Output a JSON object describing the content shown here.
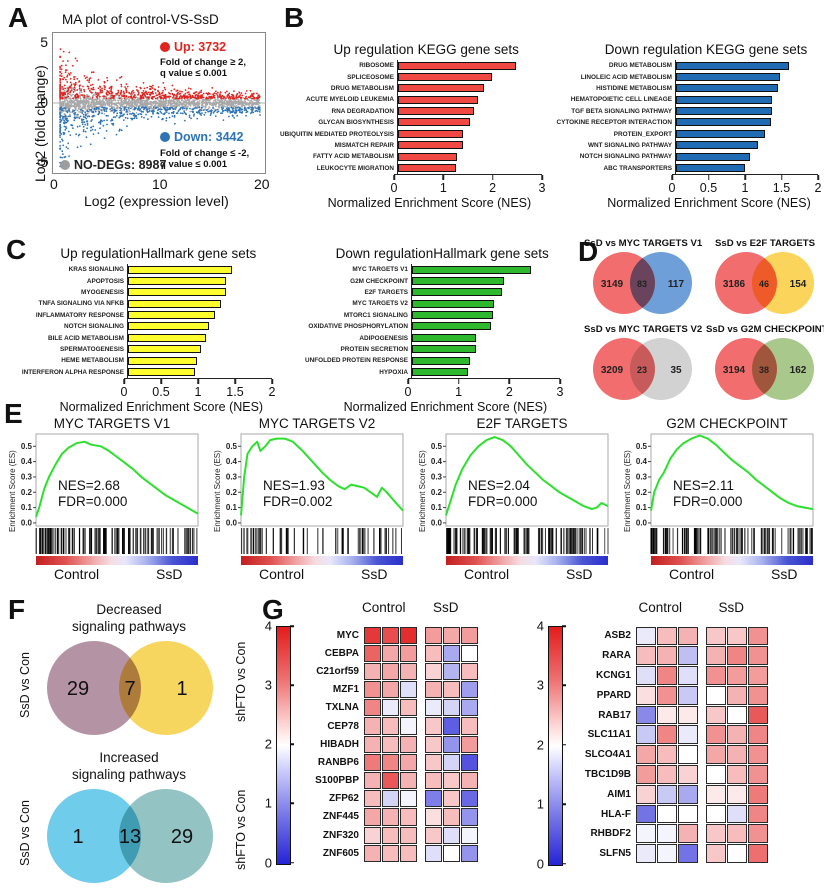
{
  "figure": {
    "labels": {
      "A": "A",
      "B": "B",
      "C": "C",
      "D": "D",
      "E": "E",
      "F": "F",
      "G": "G"
    }
  },
  "chart_data": [
    {
      "id": "ma_plot",
      "type": "scatter",
      "title": "MA plot of control-VS-SsD",
      "xlabel": "Log2 (expression level)",
      "ylabel": "Log2 (fold change)",
      "xlim": [
        0,
        20
      ],
      "ylim": [
        -5.6,
        5.6
      ],
      "xticks": [
        0,
        10,
        20
      ],
      "yticks": [
        5,
        0,
        -5
      ],
      "series": [
        {
          "name": "Up",
          "count": 3732,
          "color": "#e02420",
          "criteria": "Fold of change ≥ 2, q value ≤ 0.001"
        },
        {
          "name": "Down",
          "count": 3442,
          "color": "#2e74b5",
          "criteria": "Fold of change ≤ -2, q value ≤ 0.001"
        },
        {
          "name": "NO-DEGs",
          "count": 8987,
          "color": "#9d9d9d"
        }
      ],
      "legend": {
        "up": "Up: 3732",
        "up_note1": "Fold of change ≥ 2,",
        "up_note2": "q value ≤ 0.001",
        "down": "Down: 3442",
        "down_note1": "Fold of change ≤ -2,",
        "down_note2": "q value ≤ 0.001",
        "nodegs": "NO-DEGs: 8987"
      }
    },
    {
      "id": "kegg_up",
      "type": "bar",
      "title": "Up regulation KEGG gene sets",
      "bar_color": "#f04943",
      "categories": [
        "RIBOSOME",
        "SPLICEOSOME",
        "DRUG METABOLISM",
        "ACUTE MYELOID LEUKEMIA",
        "RNA DEGRADATION",
        "GLYCAN BIOSYNTHESIS",
        "UBIQUITIN MEDIATED PROTEOLYSIS",
        "MISMATCH REPAIR",
        "FATTY ACID METABOLISM",
        "LEUKOCYTE  MIGRATION"
      ],
      "values": [
        2.4,
        1.9,
        1.75,
        1.62,
        1.55,
        1.45,
        1.32,
        1.32,
        1.2,
        1.18
      ],
      "xticks": [
        0,
        1,
        2,
        3
      ],
      "xlim": [
        0,
        3
      ],
      "xlabel": "Normalized Enrichment Score (NES)"
    },
    {
      "id": "kegg_down",
      "type": "bar",
      "title": "Down regulation KEGG gene sets",
      "bar_color": "#1f6cb4",
      "categories": [
        "DRUG METABOLISM",
        "LINOLEIC ACID METABOLISM",
        "HISTIDINE METABOLISM",
        "HEMATOPOIETIC CELL LINEAGE",
        "TGF BETA SIGNALING PATHWAY",
        "CYTOKINE RECEPTOR INTERACTION",
        "PROTEIN_EXPORT",
        "WNT SIGNALING PATHWAY",
        "NOTCH SIGNALING PATHWAY",
        "ABC TRANSPORTERS"
      ],
      "values": [
        1.55,
        1.42,
        1.4,
        1.32,
        1.32,
        1.3,
        1.22,
        1.12,
        1.02,
        0.95
      ],
      "xticks": [
        0,
        0.5,
        1,
        1.5,
        2
      ],
      "xlim": [
        0,
        2
      ],
      "xlabel": "Normalized Enrichment Score (NES)"
    },
    {
      "id": "hallmark_up",
      "type": "bar",
      "title": "Up regulationHallmark gene sets",
      "bar_color": "#ffff2e",
      "categories": [
        "KRAS SIGNALING",
        "APOPTOSIS",
        "MYOGENESIS",
        "TNFA SIGNALING VIA NFKB",
        "INFLAMMATORY RESPONSE",
        "NOTCH SIGNALING",
        "BILE ACID METABOLISM",
        "SPERMATOGENESIS",
        "HEME METABOLISM",
        "INTERFERON ALPHA RESPONSE"
      ],
      "values": [
        1.4,
        1.33,
        1.33,
        1.26,
        1.18,
        1.1,
        1.05,
        0.98,
        0.93,
        0.9
      ],
      "xticks": [
        0,
        0.5,
        1,
        1.5,
        2
      ],
      "xlim": [
        0,
        2
      ],
      "xlabel": "Normalized Enrichment Score (NES)"
    },
    {
      "id": "hallmark_down",
      "type": "bar",
      "title": "Down regulationHallmark gene sets",
      "bar_color": "#2eb82e",
      "categories": [
        "MYC TARGETS V1",
        "G2M CHECKPOINT",
        "E2F TARGETS",
        "MYC TARGETS V2",
        "MTORC1 SIGNALING",
        "OXIDATIVE PHOSPHORYLATION",
        "ADIPOGENESIS",
        "PROTEIN SECRETION",
        "UNFOLDED PROTEIN RESPONSE",
        "HYPOXIA"
      ],
      "values": [
        2.35,
        1.82,
        1.78,
        1.62,
        1.6,
        1.56,
        1.27,
        1.26,
        1.15,
        1.1
      ],
      "xticks": [
        0,
        1,
        2,
        3
      ],
      "xlim": [
        0,
        3
      ],
      "xlabel": "Normalized Enrichment Score (NES)"
    },
    {
      "id": "gsea",
      "type": "line",
      "ylabel": "Enrichment Score (ES)",
      "yticks": [
        0.5,
        0.4,
        0.3,
        0.2,
        0.1,
        0.0
      ],
      "group_left": "Control",
      "group_right": "SsD",
      "curve_color": "#2ee02e",
      "plots": [
        {
          "title": "MYC TARGETS V1",
          "nes": "NES=2.68",
          "fdr": "FDR=0.000",
          "hits": 90,
          "curve": [
            [
              0,
              0.04
            ],
            [
              0.02,
              0.1
            ],
            [
              0.05,
              0.22
            ],
            [
              0.08,
              0.3
            ],
            [
              0.12,
              0.38
            ],
            [
              0.16,
              0.45
            ],
            [
              0.2,
              0.49
            ],
            [
              0.25,
              0.52
            ],
            [
              0.3,
              0.53
            ],
            [
              0.34,
              0.51
            ],
            [
              0.4,
              0.5
            ],
            [
              0.45,
              0.47
            ],
            [
              0.5,
              0.43
            ],
            [
              0.55,
              0.39
            ],
            [
              0.6,
              0.35
            ],
            [
              0.65,
              0.3
            ],
            [
              0.7,
              0.26
            ],
            [
              0.75,
              0.22
            ],
            [
              0.8,
              0.18
            ],
            [
              0.85,
              0.15
            ],
            [
              0.9,
              0.12
            ],
            [
              0.95,
              0.09
            ],
            [
              1,
              0.06
            ]
          ]
        },
        {
          "title": "MYC TARGETS V2",
          "nes": "NES=1.93",
          "fdr": "FDR=0.002",
          "hits": 45,
          "curve": [
            [
              0,
              0.05
            ],
            [
              0.02,
              0.3
            ],
            [
              0.04,
              0.45
            ],
            [
              0.07,
              0.5
            ],
            [
              0.1,
              0.53
            ],
            [
              0.12,
              0.47
            ],
            [
              0.15,
              0.5
            ],
            [
              0.18,
              0.54
            ],
            [
              0.22,
              0.55
            ],
            [
              0.27,
              0.55
            ],
            [
              0.32,
              0.53
            ],
            [
              0.38,
              0.47
            ],
            [
              0.44,
              0.4
            ],
            [
              0.5,
              0.33
            ],
            [
              0.55,
              0.28
            ],
            [
              0.6,
              0.24
            ],
            [
              0.64,
              0.22
            ],
            [
              0.68,
              0.25
            ],
            [
              0.72,
              0.24
            ],
            [
              0.76,
              0.23
            ],
            [
              0.8,
              0.2
            ],
            [
              0.84,
              0.17
            ],
            [
              0.87,
              0.23
            ],
            [
              0.9,
              0.2
            ],
            [
              0.94,
              0.15
            ],
            [
              1,
              0.08
            ]
          ]
        },
        {
          "title": "E2F TARGETS",
          "nes": "NES=2.04",
          "fdr": "FDR=0.000",
          "hits": 90,
          "curve": [
            [
              0,
              0.05
            ],
            [
              0.03,
              0.15
            ],
            [
              0.06,
              0.25
            ],
            [
              0.1,
              0.35
            ],
            [
              0.15,
              0.44
            ],
            [
              0.2,
              0.5
            ],
            [
              0.25,
              0.54
            ],
            [
              0.3,
              0.56
            ],
            [
              0.35,
              0.54
            ],
            [
              0.4,
              0.5
            ],
            [
              0.45,
              0.44
            ],
            [
              0.5,
              0.38
            ],
            [
              0.55,
              0.33
            ],
            [
              0.6,
              0.28
            ],
            [
              0.65,
              0.24
            ],
            [
              0.7,
              0.2
            ],
            [
              0.75,
              0.17
            ],
            [
              0.8,
              0.14
            ],
            [
              0.85,
              0.11
            ],
            [
              0.9,
              0.09
            ],
            [
              0.93,
              0.1
            ],
            [
              0.96,
              0.13
            ],
            [
              1,
              0.11
            ]
          ]
        },
        {
          "title": "G2M CHECKPOINT",
          "nes": "NES=2.11",
          "fdr": "FDR=0.000",
          "hits": 90,
          "curve": [
            [
              0,
              0.08
            ],
            [
              0.02,
              0.2
            ],
            [
              0.05,
              0.28
            ],
            [
              0.08,
              0.33
            ],
            [
              0.12,
              0.42
            ],
            [
              0.16,
              0.48
            ],
            [
              0.2,
              0.52
            ],
            [
              0.25,
              0.55
            ],
            [
              0.3,
              0.57
            ],
            [
              0.35,
              0.55
            ],
            [
              0.4,
              0.51
            ],
            [
              0.45,
              0.46
            ],
            [
              0.5,
              0.41
            ],
            [
              0.55,
              0.37
            ],
            [
              0.6,
              0.33
            ],
            [
              0.65,
              0.28
            ],
            [
              0.7,
              0.24
            ],
            [
              0.75,
              0.2
            ],
            [
              0.8,
              0.16
            ],
            [
              0.85,
              0.13
            ],
            [
              0.9,
              0.11
            ],
            [
              0.95,
              0.1
            ],
            [
              1,
              0.09
            ]
          ]
        }
      ]
    },
    {
      "id": "venn_d",
      "type": "venn",
      "diagrams": [
        {
          "title": "SsD vs MYC TARGETS V1",
          "left": "3149",
          "overlap": "83",
          "right": "117",
          "left_color": "#f26d6d",
          "right_color": "#6f9fd8"
        },
        {
          "title": "SsD vs E2F TARGETS",
          "left": "3186",
          "overlap": "46",
          "right": "154",
          "left_color": "#f26d6d",
          "right_color": "#fbd45c"
        },
        {
          "title": "SsD vs MYC TARGETS V2",
          "left": "3209",
          "overlap": "23",
          "right": "35",
          "left_color": "#f26d6d",
          "right_color": "#d2d2d2"
        },
        {
          "title": "SsD vs G2M CHECKPOINT",
          "left": "3194",
          "overlap": "38",
          "right": "162",
          "left_color": "#f26d6d",
          "right_color": "#a9c98c"
        }
      ]
    },
    {
      "id": "venn_f",
      "type": "venn",
      "diagrams": [
        {
          "title_line1": "Decreased",
          "title_line2": "signaling pathways",
          "left_label": "SsD vs Con",
          "right_label": "shFTO vs Con",
          "left": "29",
          "overlap": "7",
          "right": "1",
          "left_color": "#b494a4",
          "right_color": "#f6d65e"
        },
        {
          "title_line1": "Increased",
          "title_line2": "signaling pathways",
          "left_label": "SsD vs Con",
          "right_label": "shFTO vs Con",
          "left": "1",
          "overlap": "13",
          "right": "29",
          "left_color": "#6fccea",
          "right_color": "#93c3c3"
        }
      ]
    },
    {
      "id": "heatmap_left",
      "type": "heatmap",
      "col_groups": [
        "Control",
        "SsD"
      ],
      "colorbar": {
        "min": 0,
        "max": 4,
        "ticks": [
          4,
          3,
          2,
          1,
          0
        ]
      },
      "genes": [
        "MYC",
        "CEBPA",
        "C21orf59",
        "MZF1",
        "TXLNA",
        "CEP78",
        "HIBADH",
        "RANBP6",
        "S100PBP",
        "ZFP62",
        "ZNF445",
        "ZNF320",
        "ZNF605"
      ],
      "values": [
        [
          3.8,
          3.6,
          3.9,
          2.9,
          2.8,
          2.9
        ],
        [
          3.4,
          2.8,
          2.9,
          2.6,
          1.2,
          2.0
        ],
        [
          2.7,
          2.8,
          2.7,
          2.4,
          1.3,
          2.6
        ],
        [
          3.0,
          2.8,
          1.7,
          2.7,
          2.6,
          1.1
        ],
        [
          3.1,
          1.8,
          2.6,
          1.8,
          1.6,
          1.2
        ],
        [
          2.7,
          2.6,
          1.9,
          2.5,
          0.5,
          2.6
        ],
        [
          2.7,
          2.6,
          2.7,
          2.5,
          1.0,
          2.9
        ],
        [
          3.2,
          3.1,
          2.8,
          2.5,
          1.6,
          0.4
        ],
        [
          2.7,
          3.5,
          2.7,
          2.6,
          2.5,
          2.7
        ],
        [
          2.6,
          1.6,
          1.9,
          0.8,
          2.5,
          0.6
        ],
        [
          2.8,
          2.7,
          2.6,
          2.3,
          2.6,
          1.0
        ],
        [
          2.4,
          2.6,
          2.6,
          2.5,
          1.7,
          1.9
        ],
        [
          2.7,
          2.6,
          2.6,
          1.7,
          2.0,
          1.0
        ]
      ]
    },
    {
      "id": "heatmap_right",
      "type": "heatmap",
      "col_groups": [
        "Control",
        "SsD"
      ],
      "colorbar": {
        "min": 0,
        "max": 4,
        "ticks": [
          4,
          3,
          2,
          1,
          0
        ]
      },
      "genes": [
        "ASB2",
        "RARA",
        "KCNG1",
        "PPARD",
        "RAB17",
        "SLC11A1",
        "SLCO4A1",
        "TBC1D9B",
        "AIM1",
        "HLA-F",
        "RHBDF2",
        "SLFN5"
      ],
      "values": [
        [
          1.8,
          2.6,
          2.7,
          2.5,
          2.5,
          3.0
        ],
        [
          2.6,
          2.7,
          1.4,
          2.7,
          3.1,
          3.0
        ],
        [
          1.7,
          3.1,
          1.7,
          3.0,
          2.9,
          2.9
        ],
        [
          2.3,
          3.0,
          1.5,
          2.0,
          2.7,
          3.0
        ],
        [
          0.9,
          2.2,
          2.2,
          2.5,
          2.0,
          3.5
        ],
        [
          1.5,
          3.1,
          1.8,
          3.0,
          2.7,
          3.1
        ],
        [
          2.8,
          2.6,
          2.0,
          2.8,
          2.7,
          3.0
        ],
        [
          2.9,
          2.6,
          2.4,
          2.0,
          2.6,
          3.0
        ],
        [
          2.4,
          1.5,
          1.2,
          2.2,
          2.2,
          3.2
        ],
        [
          0.7,
          2.0,
          2.0,
          2.0,
          1.7,
          3.1
        ],
        [
          1.9,
          1.9,
          2.7,
          2.5,
          2.6,
          3.0
        ],
        [
          1.8,
          1.9,
          0.7,
          2.5,
          2.0,
          3.3
        ]
      ]
    }
  ]
}
